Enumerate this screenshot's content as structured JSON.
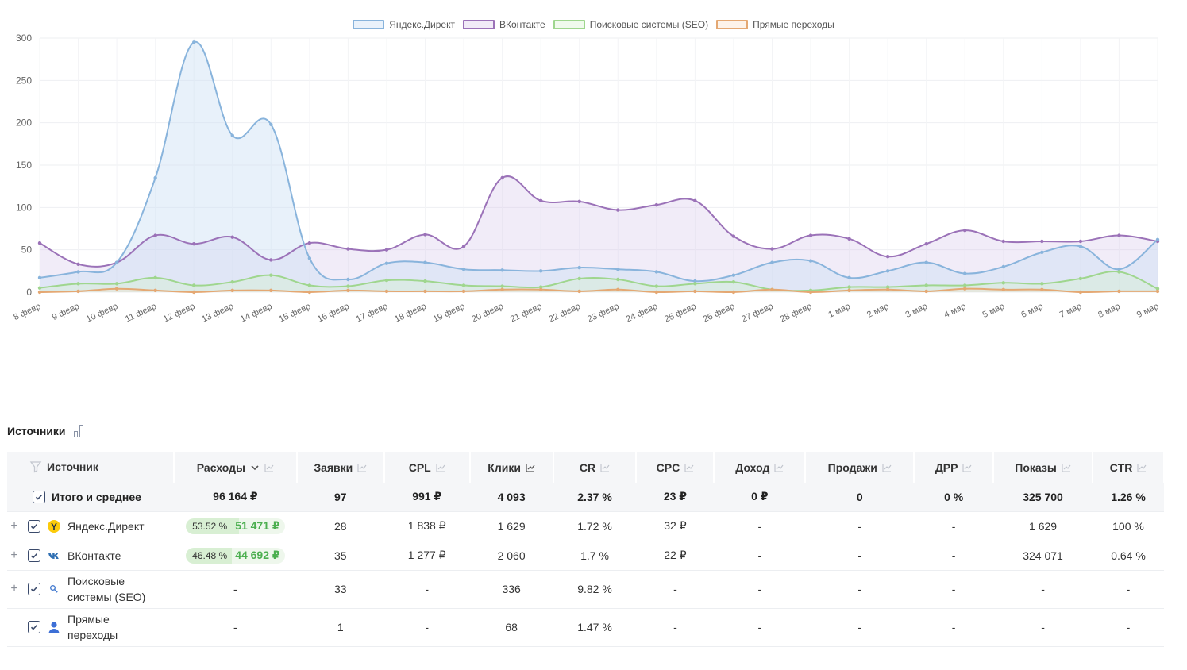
{
  "chart_data": {
    "type": "area",
    "categories": [
      "8 февр",
      "9 февр",
      "10 февр",
      "11 февр",
      "12 февр",
      "13 февр",
      "14 февр",
      "15 февр",
      "16 февр",
      "17 февр",
      "18 февр",
      "19 февр",
      "20 февр",
      "21 февр",
      "22 февр",
      "23 февр",
      "24 февр",
      "25 февр",
      "26 февр",
      "27 февр",
      "28 февр",
      "1 мар",
      "2 мар",
      "3 мар",
      "4 мар",
      "5 мар",
      "6 мар",
      "7 мар",
      "8 мар",
      "9 мар"
    ],
    "ylim": [
      0,
      300
    ],
    "yticks": [
      0,
      50,
      100,
      150,
      200,
      250,
      300
    ],
    "grid": true,
    "legend_position": "top-center",
    "series": [
      {
        "name": "Яндекс.Директ",
        "color": "#89b4dc",
        "fill": "rgba(205,223,243,0.45)",
        "values": [
          17,
          24,
          35,
          135,
          295,
          185,
          198,
          40,
          15,
          34,
          35,
          27,
          26,
          25,
          29,
          27,
          24,
          13,
          20,
          35,
          37,
          17,
          25,
          35,
          22,
          30,
          47,
          54,
          27,
          62
        ]
      },
      {
        "name": "ВКонтакте",
        "color": "#9b72b8",
        "fill": "rgba(214,200,236,0.35)",
        "values": [
          58,
          33,
          35,
          67,
          57,
          65,
          38,
          58,
          51,
          50,
          68,
          54,
          135,
          108,
          107,
          97,
          103,
          108,
          66,
          51,
          67,
          63,
          42,
          57,
          73,
          60,
          60,
          60,
          67,
          60
        ]
      },
      {
        "name": "Поисковые системы (SEO)",
        "color": "#9fd68e",
        "fill": "rgba(210,240,200,0.35)",
        "values": [
          5,
          10,
          10,
          17,
          8,
          12,
          20,
          8,
          7,
          14,
          13,
          8,
          7,
          6,
          16,
          15,
          7,
          10,
          12,
          3,
          2,
          6,
          6,
          8,
          8,
          11,
          10,
          16,
          24,
          4
        ]
      },
      {
        "name": "Прямые переходы",
        "color": "#e4a873",
        "fill": "rgba(250,230,210,0.35)",
        "values": [
          0,
          1,
          4,
          2,
          0,
          2,
          2,
          0,
          2,
          1,
          1,
          1,
          3,
          3,
          1,
          3,
          0,
          1,
          0,
          3,
          0,
          2,
          3,
          1,
          4,
          3,
          3,
          0,
          1,
          1
        ]
      }
    ]
  },
  "sources_table": {
    "title": "Источники",
    "headers": {
      "source": "Источник",
      "spend": "Расходы",
      "leads": "Заявки",
      "cpl": "CPL",
      "clicks": "Клики",
      "cr": "CR",
      "cpc": "CPC",
      "income": "Доход",
      "sales": "Продажи",
      "drr": "ДРР",
      "shows": "Показы",
      "ctr": "CTR"
    },
    "total": {
      "label": "Итого и среднее",
      "spend": "96 164 ₽",
      "leads": "97",
      "cpl": "991 ₽",
      "clicks": "4 093",
      "cr": "2.37 %",
      "cpc": "23 ₽",
      "income": "0 ₽",
      "sales": "0",
      "drr": "0 %",
      "shows": "325 700",
      "ctr": "1.26 %"
    },
    "rows": [
      {
        "name": "Яндекс.Директ",
        "icon": "yandex-direct-icon",
        "spend_pct": "53.52 %",
        "spend": "51 471 ₽",
        "spend_share": 0.5352,
        "leads": "28",
        "cpl": "1 838 ₽",
        "clicks": "1 629",
        "cr": "1.72 %",
        "cpc": "32 ₽",
        "income": "-",
        "sales": "-",
        "drr": "-",
        "shows": "1 629",
        "ctr": "100 %"
      },
      {
        "name": "ВКонтакте",
        "icon": "vk-icon",
        "spend_pct": "46.48 %",
        "spend": "44 692 ₽",
        "spend_share": 0.4648,
        "leads": "35",
        "cpl": "1 277 ₽",
        "clicks": "2 060",
        "cr": "1.7 %",
        "cpc": "22 ₽",
        "income": "-",
        "sales": "-",
        "drr": "-",
        "shows": "324 071",
        "ctr": "0.64 %"
      },
      {
        "name_line1": "Поисковые",
        "name_line2": "системы (SEO)",
        "icon": "search-icon",
        "spend": "-",
        "leads": "33",
        "cpl": "-",
        "clicks": "336",
        "cr": "9.82 %",
        "cpc": "-",
        "income": "-",
        "sales": "-",
        "drr": "-",
        "shows": "-",
        "ctr": "-"
      },
      {
        "name_line1": "Прямые",
        "name_line2": "переходы",
        "icon": "user-icon",
        "spend": "-",
        "leads": "1",
        "cpl": "-",
        "clicks": "68",
        "cr": "1.47 %",
        "cpc": "-",
        "income": "-",
        "sales": "-",
        "drr": "-",
        "shows": "-",
        "ctr": "-"
      }
    ]
  }
}
